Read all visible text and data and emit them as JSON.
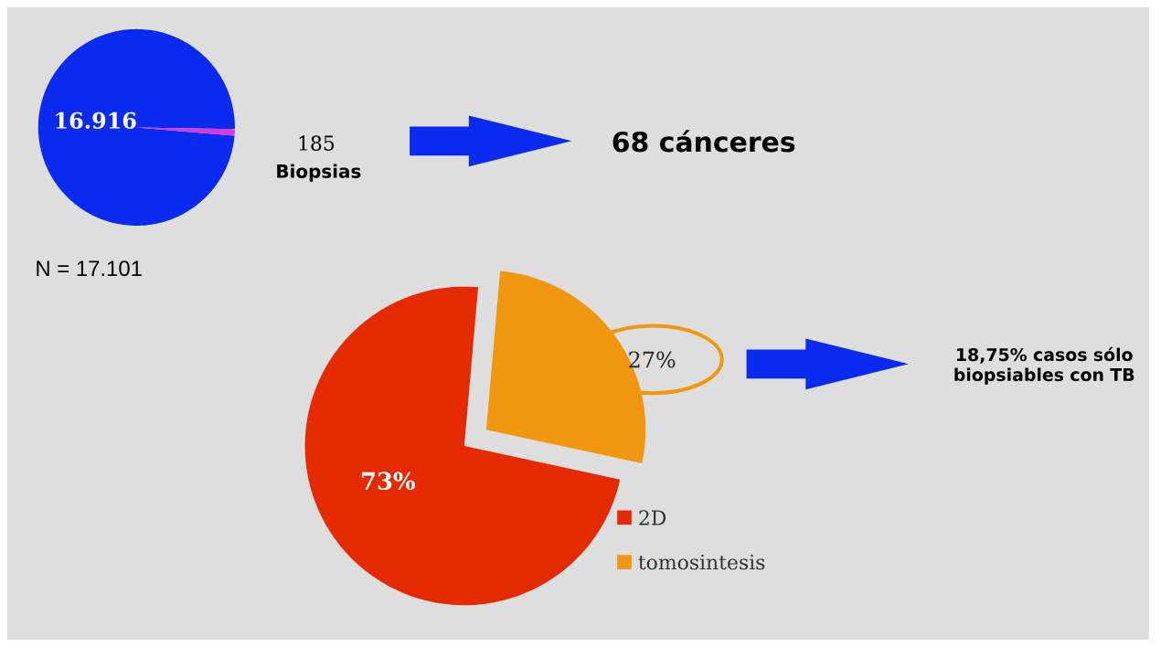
{
  "chart_data": [
    {
      "type": "pie",
      "categories": [
        null,
        "Biopsias"
      ],
      "values": [
        16916,
        185
      ],
      "value_labels": [
        "16.916",
        "185"
      ],
      "colors": [
        "#0a2bef",
        "#d83ad8"
      ],
      "annotations": [
        "N = 17.101",
        "68 cánceres"
      ]
    },
    {
      "type": "pie",
      "categories": [
        "2D",
        "tomosintesis"
      ],
      "values": [
        73,
        27
      ],
      "value_labels": [
        "73%",
        "27%"
      ],
      "colors": [
        "#e62a00",
        "#f0960f"
      ],
      "legend": "bottom right",
      "annotations": [
        "18,75% casos sólo biopsiables con TB"
      ]
    }
  ]
}
